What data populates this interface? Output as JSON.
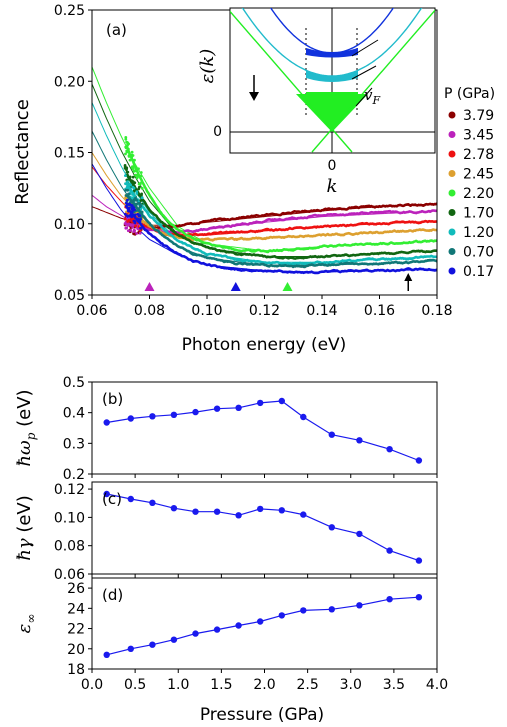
{
  "chart_data": [
    {
      "panel": "(a)",
      "type": "line",
      "xlabel": "Photon energy (eV)",
      "ylabel": "Reflectance",
      "xlim": [
        0.06,
        0.18
      ],
      "ylim": [
        0.05,
        0.25
      ],
      "xticks": [
        "0.06",
        "0.08",
        "0.10",
        "0.12",
        "0.14",
        "0.16",
        "0.18"
      ],
      "yticks": [
        "0.05",
        "0.10",
        "0.15",
        "0.20",
        "0.25"
      ],
      "legend_title": "P (GPa)",
      "legend_position": "right",
      "series": [
        {
          "name": "3.79",
          "color": "#8b0000",
          "fit_start": 0.101,
          "x_data": [
            0.072,
            0.076,
            0.08,
            0.085,
            0.09,
            0.095,
            0.1,
            0.11,
            0.12,
            0.13,
            0.14,
            0.15,
            0.16,
            0.17,
            0.18
          ],
          "y_data": [
            0.1,
            0.098,
            0.097,
            0.098,
            0.099,
            0.1,
            0.102,
            0.104,
            0.106,
            0.108,
            0.11,
            0.111,
            0.112,
            0.113,
            0.114
          ]
        },
        {
          "name": "3.45",
          "color": "#bb22bb",
          "fit_start": 0.098,
          "x_data": [
            0.072,
            0.076,
            0.08,
            0.085,
            0.09,
            0.095,
            0.1,
            0.11,
            0.12,
            0.13,
            0.14,
            0.15,
            0.16,
            0.17,
            0.18
          ],
          "y_data": [
            0.1,
            0.099,
            0.096,
            0.094,
            0.094,
            0.095,
            0.096,
            0.099,
            0.102,
            0.104,
            0.106,
            0.107,
            0.108,
            0.108,
            0.109
          ]
        },
        {
          "name": "2.78",
          "color": "#ee1111",
          "fit_start": 0.092,
          "x_data": [
            0.072,
            0.076,
            0.08,
            0.085,
            0.09,
            0.095,
            0.1,
            0.11,
            0.12,
            0.13,
            0.14,
            0.15,
            0.16,
            0.17,
            0.18
          ],
          "y_data": [
            0.108,
            0.102,
            0.097,
            0.093,
            0.092,
            0.092,
            0.093,
            0.094,
            0.095,
            0.097,
            0.098,
            0.099,
            0.1,
            0.101,
            0.102
          ]
        },
        {
          "name": "2.45",
          "color": "#dda030",
          "fit_start": 0.09,
          "x_data": [
            0.072,
            0.076,
            0.08,
            0.085,
            0.09,
            0.095,
            0.1,
            0.11,
            0.12,
            0.13,
            0.14,
            0.15,
            0.16,
            0.17,
            0.18
          ],
          "y_data": [
            0.114,
            0.105,
            0.098,
            0.093,
            0.09,
            0.089,
            0.089,
            0.089,
            0.09,
            0.091,
            0.092,
            0.093,
            0.094,
            0.095,
            0.096
          ]
        },
        {
          "name": "2.20",
          "color": "#33ee33",
          "fit_start": 0.088,
          "x_data": [
            0.072,
            0.076,
            0.08,
            0.085,
            0.09,
            0.095,
            0.1,
            0.11,
            0.12,
            0.13,
            0.14,
            0.15,
            0.16,
            0.17,
            0.18
          ],
          "y_data": [
            0.155,
            0.135,
            0.12,
            0.105,
            0.096,
            0.09,
            0.086,
            0.082,
            0.081,
            0.082,
            0.084,
            0.085,
            0.086,
            0.087,
            0.088
          ]
        },
        {
          "name": "1.70",
          "color": "#116611",
          "fit_start": 0.086,
          "x_data": [
            0.072,
            0.076,
            0.08,
            0.085,
            0.09,
            0.095,
            0.1,
            0.11,
            0.12,
            0.13,
            0.14,
            0.15,
            0.16,
            0.17,
            0.18
          ],
          "y_data": [
            0.135,
            0.122,
            0.11,
            0.1,
            0.092,
            0.087,
            0.083,
            0.079,
            0.077,
            0.076,
            0.077,
            0.078,
            0.079,
            0.08,
            0.081
          ]
        },
        {
          "name": "1.20",
          "color": "#11bbbb",
          "fit_start": 0.084,
          "x_data": [
            0.072,
            0.076,
            0.08,
            0.085,
            0.09,
            0.095,
            0.1,
            0.11,
            0.12,
            0.13,
            0.14,
            0.15,
            0.16,
            0.17,
            0.18
          ],
          "y_data": [
            0.128,
            0.116,
            0.106,
            0.096,
            0.088,
            0.083,
            0.079,
            0.075,
            0.073,
            0.072,
            0.073,
            0.074,
            0.075,
            0.076,
            0.077
          ]
        },
        {
          "name": "0.70",
          "color": "#117777",
          "fit_start": 0.082,
          "x_data": [
            0.072,
            0.076,
            0.08,
            0.085,
            0.09,
            0.095,
            0.1,
            0.11,
            0.12,
            0.13,
            0.14,
            0.15,
            0.16,
            0.17,
            0.18
          ],
          "y_data": [
            0.12,
            0.11,
            0.1,
            0.091,
            0.084,
            0.079,
            0.076,
            0.072,
            0.071,
            0.07,
            0.071,
            0.072,
            0.072,
            0.073,
            0.074
          ]
        },
        {
          "name": "0.17",
          "color": "#1111dd",
          "fit_start": 0.08,
          "x_data": [
            0.072,
            0.076,
            0.08,
            0.085,
            0.09,
            0.095,
            0.1,
            0.11,
            0.12,
            0.13,
            0.14,
            0.15,
            0.16,
            0.17,
            0.18
          ],
          "y_data": [
            0.112,
            0.102,
            0.093,
            0.085,
            0.079,
            0.074,
            0.071,
            0.068,
            0.067,
            0.066,
            0.066,
            0.067,
            0.067,
            0.068,
            0.068
          ]
        }
      ],
      "fits_x": [
        0.06,
        0.065,
        0.07,
        0.075,
        0.08,
        0.09,
        0.1,
        0.12,
        0.14,
        0.16,
        0.18
      ],
      "fits": [
        [
          0.112,
          0.108,
          0.104,
          0.101,
          0.099,
          0.099,
          0.101,
          0.105,
          0.109,
          0.112,
          0.114
        ],
        [
          0.12,
          0.112,
          0.106,
          0.1,
          0.097,
          0.094,
          0.096,
          0.101,
          0.105,
          0.107,
          0.109
        ],
        [
          0.14,
          0.127,
          0.116,
          0.106,
          0.099,
          0.092,
          0.092,
          0.095,
          0.098,
          0.1,
          0.102
        ],
        [
          0.15,
          0.134,
          0.12,
          0.109,
          0.1,
          0.091,
          0.089,
          0.09,
          0.092,
          0.094,
          0.096
        ],
        [
          0.21,
          0.185,
          0.162,
          0.142,
          0.125,
          0.098,
          0.086,
          0.081,
          0.084,
          0.086,
          0.088
        ],
        [
          0.198,
          0.174,
          0.152,
          0.133,
          0.116,
          0.092,
          0.083,
          0.077,
          0.077,
          0.079,
          0.081
        ],
        [
          0.185,
          0.162,
          0.141,
          0.123,
          0.108,
          0.088,
          0.079,
          0.073,
          0.073,
          0.075,
          0.077
        ],
        [
          0.165,
          0.145,
          0.127,
          0.112,
          0.099,
          0.084,
          0.076,
          0.071,
          0.071,
          0.072,
          0.074
        ],
        [
          0.142,
          0.125,
          0.11,
          0.098,
          0.089,
          0.078,
          0.071,
          0.067,
          0.066,
          0.067,
          0.068
        ]
      ],
      "markers": [
        {
          "x": 0.08,
          "color": "#bb22bb",
          "shape": "triangle-up"
        },
        {
          "x": 0.11,
          "color": "#1111dd",
          "shape": "triangle-up"
        },
        {
          "x": 0.128,
          "color": "#33ee33",
          "shape": "triangle-up"
        },
        {
          "x": 0.17,
          "color": "#000000",
          "shape": "arrow-up"
        }
      ],
      "inset": {
        "xlabel": "k",
        "ylabel": "ε(k)",
        "xtick": "0",
        "ytick": "0",
        "annotation": "v",
        "annotation_sub": "F",
        "arrow": "down"
      }
    },
    {
      "panel": "(b)",
      "type": "line",
      "ylabel": "ħω",
      "ylabel_sub": "p",
      "ylabel_unit": " (eV)",
      "xlim": [
        0.0,
        4.0
      ],
      "ylim": [
        0.2,
        0.5
      ],
      "yticks": [
        "0.2",
        "0.3",
        "0.4",
        "0.5"
      ],
      "x": [
        0.17,
        0.45,
        0.7,
        0.95,
        1.2,
        1.45,
        1.7,
        1.95,
        2.2,
        2.45,
        2.78,
        3.1,
        3.45,
        3.79
      ],
      "y": [
        0.368,
        0.381,
        0.388,
        0.393,
        0.402,
        0.413,
        0.416,
        0.432,
        0.438,
        0.386,
        0.328,
        0.31,
        0.281,
        0.244
      ]
    },
    {
      "panel": "(c)",
      "type": "line",
      "ylabel": "ħγ",
      "ylabel_unit": " (eV)",
      "xlim": [
        0.0,
        4.0
      ],
      "ylim": [
        0.06,
        0.125
      ],
      "yticks": [
        "0.06",
        "0.08",
        "0.10",
        "0.12"
      ],
      "x": [
        0.17,
        0.45,
        0.7,
        0.95,
        1.2,
        1.45,
        1.7,
        1.95,
        2.2,
        2.45,
        2.78,
        3.1,
        3.45,
        3.79
      ],
      "y": [
        0.1165,
        0.113,
        0.1103,
        0.1065,
        0.104,
        0.104,
        0.1015,
        0.106,
        0.105,
        0.102,
        0.093,
        0.0883,
        0.0765,
        0.0695
      ]
    },
    {
      "panel": "(d)",
      "type": "line",
      "ylabel": "ε",
      "ylabel_sub": "∞",
      "xlabel": "Pressure (GPa)",
      "xlim": [
        0.0,
        4.0
      ],
      "ylim": [
        18,
        27
      ],
      "yticks": [
        "18",
        "20",
        "22",
        "24",
        "26"
      ],
      "xticks": [
        "0.0",
        "0.5",
        "1.0",
        "1.5",
        "2.0",
        "2.5",
        "3.0",
        "3.5",
        "4.0"
      ],
      "x": [
        0.17,
        0.45,
        0.7,
        0.95,
        1.2,
        1.45,
        1.7,
        1.95,
        2.2,
        2.45,
        2.78,
        3.1,
        3.45,
        3.79
      ],
      "y": [
        19.4,
        20.0,
        20.4,
        20.9,
        21.5,
        21.9,
        22.3,
        22.7,
        23.3,
        23.8,
        23.9,
        24.3,
        24.9,
        25.1
      ]
    }
  ],
  "colors": {
    "line_series": "#1a1aee"
  }
}
